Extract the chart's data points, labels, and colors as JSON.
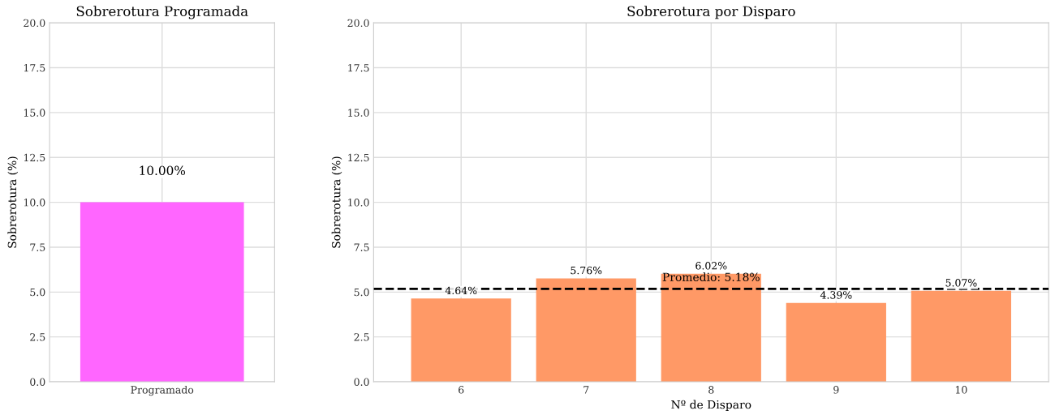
{
  "chart_data": [
    {
      "type": "bar",
      "title": "Sobrerotura Programada",
      "ylabel": "Sobrerotura (%)",
      "categories": [
        "Programado"
      ],
      "values": [
        10.0
      ],
      "color": "#ff66ff",
      "value_labels": [
        "10.00%"
      ],
      "ylim": [
        0,
        20
      ],
      "yticks": [
        {
          "value": 0,
          "label": "0.0"
        },
        {
          "value": 2.5,
          "label": "2.5"
        },
        {
          "value": 5,
          "label": "5.0"
        },
        {
          "value": 7.5,
          "label": "7.5"
        },
        {
          "value": 10,
          "label": "10.0"
        },
        {
          "value": 12.5,
          "label": "12.5"
        },
        {
          "value": 15,
          "label": "15.0"
        },
        {
          "value": 17.5,
          "label": "17.5"
        },
        {
          "value": 20,
          "label": "20.0"
        }
      ],
      "grid": true
    },
    {
      "type": "bar",
      "title": "Sobrerotura por Disparo",
      "xlabel": "Nº de Disparo",
      "ylabel": "Sobrerotura (%)",
      "categories": [
        "6",
        "7",
        "8",
        "9",
        "10"
      ],
      "values": [
        4.64,
        5.76,
        6.02,
        4.39,
        5.07
      ],
      "color": "#ff9966",
      "value_labels": [
        "4.64%",
        "5.76%",
        "6.02%",
        "4.39%",
        "5.07%"
      ],
      "ylim": [
        0,
        20
      ],
      "yticks": [
        {
          "value": 0,
          "label": "0.0"
        },
        {
          "value": 2.5,
          "label": "2.5"
        },
        {
          "value": 5,
          "label": "5.0"
        },
        {
          "value": 7.5,
          "label": "7.5"
        },
        {
          "value": 10,
          "label": "10.0"
        },
        {
          "value": 12.5,
          "label": "12.5"
        },
        {
          "value": 15,
          "label": "15.0"
        },
        {
          "value": 17.5,
          "label": "17.5"
        },
        {
          "value": 20,
          "label": "20.0"
        }
      ],
      "grid": true,
      "ref_lines": [
        {
          "axis": "y",
          "value": 5.18,
          "label": "Promedio: 5.18%",
          "color": "#000000",
          "line_style": "dashed"
        }
      ]
    }
  ]
}
